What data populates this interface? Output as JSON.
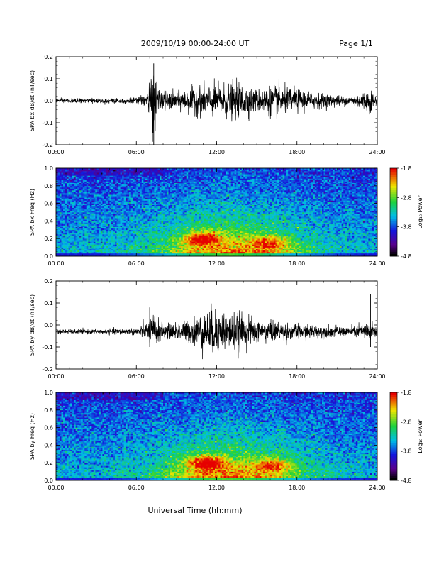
{
  "header": {
    "title": "2009/10/19   00:00-24:00 UT",
    "page": "Page 1/1"
  },
  "footer": {
    "xlabel": "Universal Time (hh:mm)"
  },
  "colorbar_label": "Log₁₀ Power",
  "chart_data": [
    {
      "type": "line",
      "title": "",
      "ylabel": "SPA bx dB/dt (nT/sec)",
      "xlabel": "",
      "xlim": [
        0,
        24
      ],
      "ylim": [
        -0.2,
        0.2
      ],
      "x_ticks": [
        "00:00",
        "06:00",
        "12:00",
        "18:00",
        "24:00"
      ],
      "y_ticks": [
        "-0.2",
        "-0.1",
        "0.0",
        "0.1",
        "0.2"
      ],
      "baseline": 0.0,
      "description_series": "dB/dt time series; quiet before 06:00, activity 07:00-22:00, spikes near 07:20 and 13:40",
      "activity_envelope": [
        {
          "t": 0,
          "amp": 0.01
        },
        {
          "t": 3,
          "amp": 0.01
        },
        {
          "t": 6,
          "amp": 0.015
        },
        {
          "t": 6.8,
          "amp": 0.03
        },
        {
          "t": 7.2,
          "amp": 0.16
        },
        {
          "t": 7.6,
          "amp": 0.05
        },
        {
          "t": 9,
          "amp": 0.04
        },
        {
          "t": 10.5,
          "amp": 0.06
        },
        {
          "t": 12,
          "amp": 0.07
        },
        {
          "t": 13.5,
          "amp": 0.08
        },
        {
          "t": 15,
          "amp": 0.05
        },
        {
          "t": 16.5,
          "amp": 0.07
        },
        {
          "t": 18,
          "amp": 0.05
        },
        {
          "t": 20,
          "amp": 0.03
        },
        {
          "t": 22,
          "amp": 0.02
        },
        {
          "t": 23.5,
          "amp": 0.05
        },
        {
          "t": 24,
          "amp": 0.02
        }
      ],
      "spikes": [
        {
          "t": 7.3,
          "min": -0.2,
          "max": 0.17
        },
        {
          "t": 13.75,
          "min": -0.03,
          "max": 0.21
        },
        {
          "t": 23.6,
          "min": -0.08,
          "max": 0.1
        }
      ]
    },
    {
      "type": "heatmap",
      "title": "",
      "ylabel": "SPA bx Freq (Hz)",
      "xlabel": "",
      "xlim": [
        0,
        24
      ],
      "ylim": [
        0.0,
        1.0
      ],
      "x_ticks": [
        "00:00",
        "06:00",
        "12:00",
        "18:00",
        "24:00"
      ],
      "y_ticks": [
        "0.0",
        "0.2",
        "0.4",
        "0.6",
        "0.8",
        "1.0"
      ],
      "colorbar": {
        "label": "Log₁₀ Power",
        "range": [
          -4.8,
          -1.8
        ],
        "ticks": [
          "-1.8",
          "-2.8",
          "-3.8",
          "-4.8"
        ]
      },
      "hotspots": [
        {
          "t": 11.0,
          "f": 0.2,
          "level": 0.95
        },
        {
          "t": 16.0,
          "f": 0.15,
          "level": 0.7
        }
      ]
    },
    {
      "type": "line",
      "title": "",
      "ylabel": "SPA by dB/dt (nT/sec)",
      "xlabel": "",
      "xlim": [
        0,
        24
      ],
      "ylim": [
        -0.2,
        0.2
      ],
      "x_ticks": [
        "00:00",
        "06:00",
        "12:00",
        "18:00",
        "24:00"
      ],
      "y_ticks": [
        "-0.2",
        "-0.1",
        "0.0",
        "0.1",
        "0.2"
      ],
      "baseline": -0.03,
      "activity_envelope": [
        {
          "t": 0,
          "amp": 0.01
        },
        {
          "t": 3,
          "amp": 0.01
        },
        {
          "t": 6,
          "amp": 0.015
        },
        {
          "t": 6.8,
          "amp": 0.04
        },
        {
          "t": 7.3,
          "amp": 0.08
        },
        {
          "t": 8,
          "amp": 0.03
        },
        {
          "t": 10,
          "amp": 0.05
        },
        {
          "t": 11.5,
          "amp": 0.1
        },
        {
          "t": 12.5,
          "amp": 0.09
        },
        {
          "t": 13.7,
          "amp": 0.08
        },
        {
          "t": 15,
          "amp": 0.05
        },
        {
          "t": 17,
          "amp": 0.04
        },
        {
          "t": 19,
          "amp": 0.03
        },
        {
          "t": 22,
          "amp": 0.02
        },
        {
          "t": 23.5,
          "amp": 0.05
        },
        {
          "t": 24,
          "amp": 0.02
        }
      ],
      "spikes": [
        {
          "t": 7.0,
          "min": -0.1,
          "max": 0.08
        },
        {
          "t": 13.75,
          "min": -0.18,
          "max": 0.2
        },
        {
          "t": 23.5,
          "min": -0.1,
          "max": 0.14
        }
      ]
    },
    {
      "type": "heatmap",
      "title": "",
      "ylabel": "SPA by Freq (Hz)",
      "xlabel": "Universal Time (hh:mm)",
      "xlim": [
        0,
        24
      ],
      "ylim": [
        0.0,
        1.0
      ],
      "x_ticks": [
        "00:00",
        "06:00",
        "12:00",
        "18:00",
        "24:00"
      ],
      "y_ticks": [
        "0.0",
        "0.2",
        "0.4",
        "0.6",
        "0.8",
        "1.0"
      ],
      "colorbar": {
        "label": "Log₁₀ Power",
        "range": [
          -4.8,
          -1.8
        ],
        "ticks": [
          "-1.8",
          "-2.8",
          "-3.8",
          "-4.8"
        ]
      },
      "hotspots": [
        {
          "t": 11.2,
          "f": 0.2,
          "level": 1.0
        },
        {
          "t": 16.2,
          "f": 0.17,
          "level": 0.75
        }
      ]
    }
  ]
}
